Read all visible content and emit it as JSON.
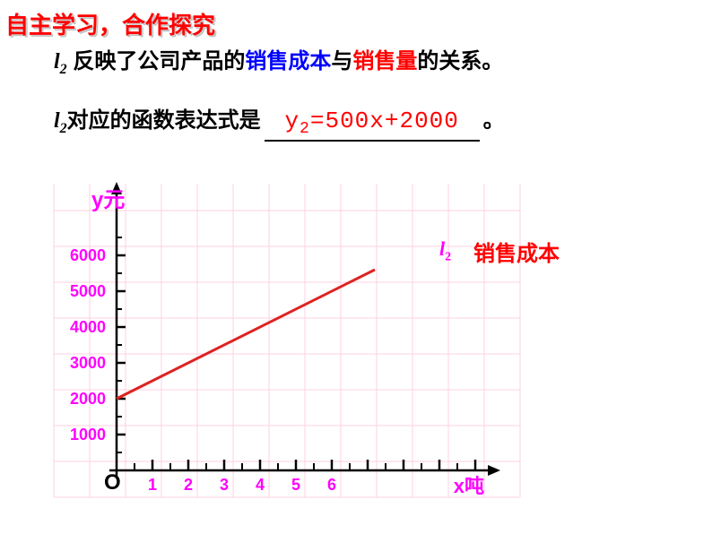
{
  "title": "自主学习，合作探究",
  "line1": {
    "prefix_l": "l",
    "prefix_sub": "2",
    "text_a": " 反映了公司产品的",
    "blue1": "销售成本",
    "mid": "与",
    "red1": "销售量",
    "suffix": "的关系。"
  },
  "line2": {
    "prefix_l": "l",
    "prefix_sub": "2",
    "text": "对应的函数表达式是",
    "formula_y": "y",
    "formula_sub": "2",
    "formula_rest": "=500x+2000",
    "period": "。"
  },
  "chart": {
    "type": "line",
    "y_label": "y元",
    "x_label": "x吨",
    "origin": "O",
    "grid_color": "#ffd0e0",
    "axis_color": "#000000",
    "line_color": "#e02020",
    "line_width": 3,
    "background_color": "#ffffff",
    "x_ticks": [
      "1",
      "2",
      "3",
      "4",
      "5",
      "6"
    ],
    "y_ticks": [
      "1000",
      "2000",
      "3000",
      "4000",
      "5000",
      "6000"
    ],
    "x_range": [
      0,
      11
    ],
    "y_range": [
      0,
      7000
    ],
    "series": {
      "symbol": "l",
      "sub": "2",
      "name": "销售成本",
      "points": [
        {
          "x": 0,
          "y": 2000
        },
        {
          "x": 6,
          "y": 5000
        }
      ]
    },
    "tick_label_color": "#ff00ff",
    "tick_label_fontsize": 18
  }
}
